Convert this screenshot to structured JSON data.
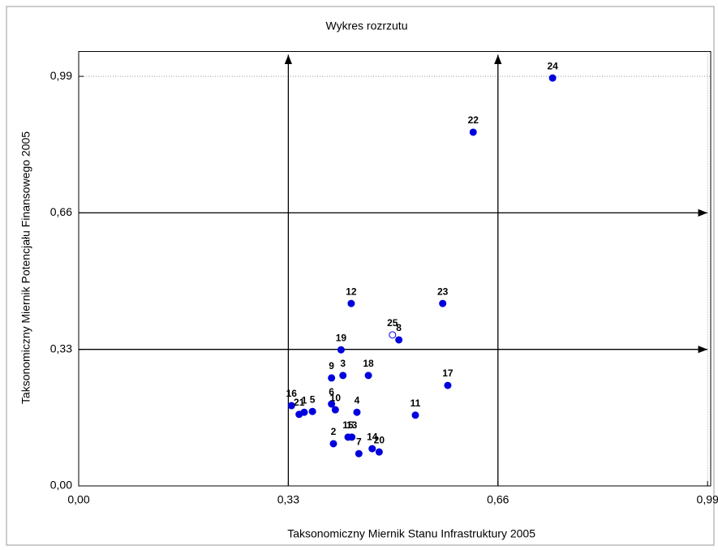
{
  "chart_data": {
    "type": "scatter",
    "title": "Wykres rozrzutu",
    "xlabel": "Taksonomiczny Miernik Stanu Infrastruktury 2005",
    "ylabel": "Taksonomiczny Miernik Potencjału Finansowego 2005",
    "xlim": [
      0,
      1.0
    ],
    "ylim": [
      0,
      1.05
    ],
    "xticks": [
      {
        "value": 0,
        "label": "0,00"
      },
      {
        "value": 0.33,
        "label": "0,33"
      },
      {
        "value": 0.66,
        "label": "0,66"
      },
      {
        "value": 0.99,
        "label": "0,99"
      }
    ],
    "yticks": [
      {
        "value": 0,
        "label": "0,00"
      },
      {
        "value": 0.33,
        "label": "0,33"
      },
      {
        "value": 0.66,
        "label": "0,66"
      },
      {
        "value": 0.99,
        "label": "0,99"
      }
    ],
    "ref_lines": {
      "x": [
        0.33,
        0.66
      ],
      "y": [
        0.33,
        0.66
      ]
    },
    "dotted_lines": {
      "x": [
        0.99
      ],
      "y": [
        0.99
      ]
    },
    "series": [
      {
        "color": "#0000dd",
        "labels": [
          "1",
          "2",
          "3",
          "4",
          "5",
          "6",
          "7",
          "8",
          "9",
          "10",
          "11",
          "12",
          "13",
          "14",
          "15",
          "16",
          "17",
          "18",
          "19",
          "20",
          "21",
          "22",
          "23",
          "24",
          "25"
        ],
        "x": [
          0.355,
          0.401,
          0.416,
          0.438,
          0.368,
          0.398,
          0.441,
          0.504,
          0.398,
          0.404,
          0.53,
          0.429,
          0.43,
          0.462,
          0.424,
          0.335,
          0.581,
          0.456,
          0.413,
          0.473,
          0.347,
          0.621,
          0.573,
          0.746,
          0.494
        ],
        "values": [
          0.178,
          0.102,
          0.267,
          0.178,
          0.18,
          0.198,
          0.078,
          0.353,
          0.261,
          0.184,
          0.171,
          0.441,
          0.118,
          0.09,
          0.118,
          0.194,
          0.243,
          0.267,
          0.329,
          0.082,
          0.173,
          0.855,
          0.441,
          0.986,
          0.365
        ],
        "filled": [
          true,
          true,
          true,
          true,
          true,
          true,
          true,
          true,
          true,
          true,
          true,
          true,
          true,
          true,
          true,
          true,
          true,
          true,
          true,
          true,
          true,
          true,
          true,
          true,
          false
        ]
      }
    ]
  }
}
